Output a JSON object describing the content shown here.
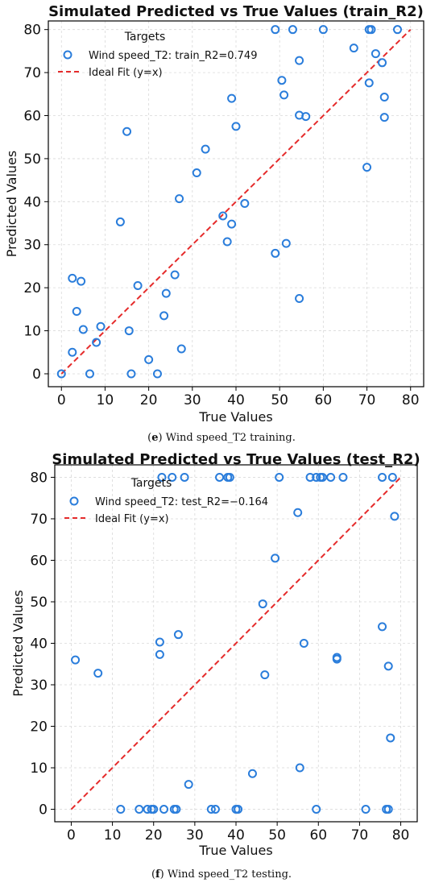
{
  "chart_data": [
    {
      "type": "scatter",
      "title": "Simulated Predicted vs True Values (train_R2)",
      "xlabel": "True Values",
      "ylabel": "Predicted Values",
      "xlim": [
        -3,
        83
      ],
      "ylim": [
        -3,
        82
      ],
      "xticks": [
        0,
        10,
        20,
        30,
        40,
        50,
        60,
        70,
        80
      ],
      "yticks": [
        0,
        10,
        20,
        30,
        40,
        50,
        60,
        70,
        80
      ],
      "grid": true,
      "legend": {
        "title": "Targets",
        "placement": "top-left",
        "entries": [
          "Wind speed_T2: train_R2=0.749",
          "Ideal Fit (y=x)"
        ]
      },
      "colors": {
        "points": "#2a7ddb",
        "ideal": "#e52b2b"
      },
      "ideal_fit": {
        "x": [
          0,
          80
        ],
        "y": [
          0,
          80
        ]
      },
      "series": [
        {
          "name": "Wind speed_T2: train_R2=0.749",
          "points": [
            [
              0,
              0
            ],
            [
              2.5,
              5
            ],
            [
              2.5,
              22.2
            ],
            [
              3.5,
              14.5
            ],
            [
              4.5,
              21.5
            ],
            [
              5,
              10.3
            ],
            [
              6.5,
              0
            ],
            [
              8,
              7.3
            ],
            [
              9,
              11
            ],
            [
              13.5,
              35.3
            ],
            [
              15,
              56.3
            ],
            [
              15.5,
              10
            ],
            [
              16,
              0
            ],
            [
              17.5,
              20.5
            ],
            [
              20,
              3.3
            ],
            [
              22,
              0
            ],
            [
              23.5,
              13.5
            ],
            [
              24,
              18.7
            ],
            [
              26,
              23
            ],
            [
              27,
              40.7
            ],
            [
              27.5,
              5.8
            ],
            [
              31,
              46.7
            ],
            [
              33,
              52.2
            ],
            [
              37,
              36.7
            ],
            [
              38,
              30.7
            ],
            [
              39,
              34.8
            ],
            [
              39,
              64
            ],
            [
              40,
              57.5
            ],
            [
              42,
              39.6
            ],
            [
              49,
              80
            ],
            [
              49,
              28
            ],
            [
              50.5,
              68.2
            ],
            [
              51,
              64.8
            ],
            [
              51.5,
              30.3
            ],
            [
              53,
              80
            ],
            [
              54.5,
              72.8
            ],
            [
              54.5,
              60.1
            ],
            [
              54.5,
              17.5
            ],
            [
              56,
              59.8
            ],
            [
              60,
              80
            ],
            [
              67,
              75.7
            ],
            [
              70,
              48
            ],
            [
              70.5,
              67.6
            ],
            [
              70.5,
              80
            ],
            [
              71,
              80
            ],
            [
              72,
              74.4
            ],
            [
              73.5,
              72.3
            ],
            [
              74,
              64.3
            ],
            [
              74,
              59.6
            ],
            [
              77,
              80
            ]
          ]
        }
      ],
      "caption": {
        "letter": "e",
        "text": "Wind speed_T2 training."
      }
    },
    {
      "type": "scatter",
      "title": "Simulated Predicted vs True Values (test_R2)",
      "xlabel": "True Values",
      "ylabel": "Predicted Values",
      "xlim": [
        -4,
        84
      ],
      "ylim": [
        -3,
        83
      ],
      "xticks": [
        0,
        10,
        20,
        30,
        40,
        50,
        60,
        70,
        80
      ],
      "yticks": [
        0,
        10,
        20,
        30,
        40,
        50,
        60,
        70,
        80
      ],
      "grid": true,
      "legend": {
        "title": "Targets",
        "placement": "top-left",
        "entries": [
          "Wind speed_T2: test_R2=−0.164",
          "Ideal Fit (y=x)"
        ]
      },
      "colors": {
        "points": "#2a7ddb",
        "ideal": "#e52b2b"
      },
      "ideal_fit": {
        "x": [
          0,
          80
        ],
        "y": [
          0,
          80
        ]
      },
      "series": [
        {
          "name": "Wind speed_T2: test_R2=−0.164",
          "points": [
            [
              1,
              36
            ],
            [
              6.5,
              32.8
            ],
            [
              12,
              0
            ],
            [
              16.5,
              0
            ],
            [
              18.5,
              0
            ],
            [
              19.5,
              0
            ],
            [
              20,
              0
            ],
            [
              21.5,
              37.3
            ],
            [
              21.5,
              40.3
            ],
            [
              22,
              80
            ],
            [
              22.5,
              0
            ],
            [
              24.5,
              80
            ],
            [
              25,
              0
            ],
            [
              25.5,
              0
            ],
            [
              26,
              42.1
            ],
            [
              27.5,
              80
            ],
            [
              28.5,
              6
            ],
            [
              34,
              0
            ],
            [
              35,
              0
            ],
            [
              36,
              80
            ],
            [
              38,
              80
            ],
            [
              38.5,
              80
            ],
            [
              40,
              0
            ],
            [
              40.5,
              0
            ],
            [
              44,
              8.6
            ],
            [
              46.5,
              49.5
            ],
            [
              47,
              32.4
            ],
            [
              49.5,
              60.5
            ],
            [
              50.5,
              80
            ],
            [
              55,
              71.5
            ],
            [
              55.5,
              10
            ],
            [
              56.5,
              40
            ],
            [
              58,
              80
            ],
            [
              59.5,
              80
            ],
            [
              59.5,
              0
            ],
            [
              60.5,
              80
            ],
            [
              61,
              80
            ],
            [
              63,
              80
            ],
            [
              64.5,
              36.6
            ],
            [
              64.5,
              36.2
            ],
            [
              66,
              80
            ],
            [
              71.5,
              0
            ],
            [
              75.5,
              80
            ],
            [
              75.5,
              44
            ],
            [
              76.5,
              0
            ],
            [
              77,
              34.5
            ],
            [
              77,
              0
            ],
            [
              77.5,
              17.2
            ],
            [
              78,
              80
            ],
            [
              78.5,
              70.6
            ]
          ]
        }
      ],
      "caption": {
        "letter": "f",
        "text": "Wind speed_T2 testing."
      }
    }
  ]
}
